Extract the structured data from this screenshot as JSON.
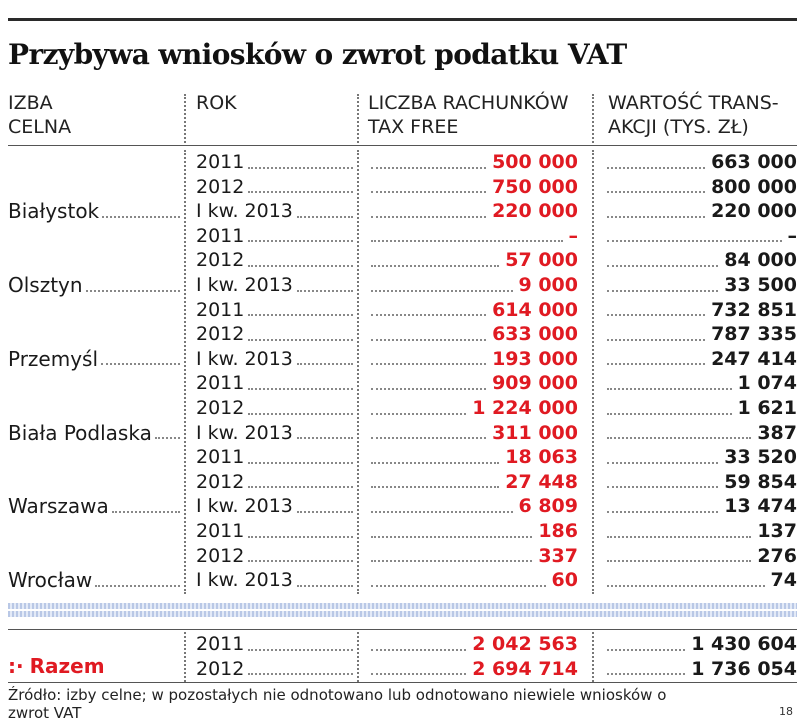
{
  "title": "Przybywa wniosków o zwrot podatku VAT",
  "headers": {
    "c1_l1": "IZBA",
    "c1_l2": "CELNA",
    "c2_l1": "ROK",
    "c3_l1": "LICZBA RACHUNKÓW",
    "c3_l2": "TAX FREE",
    "c4_l1": "WARTOŚĆ TRANS-",
    "c4_l2": "AKCJI (TYS. ZŁ)"
  },
  "rows": [
    {
      "year": "2011",
      "count": "500 000",
      "value": "663 000"
    },
    {
      "year": "2012",
      "count": "750 000",
      "value": "800 000"
    },
    {
      "city": "Białystok",
      "year": "I kw. 2013",
      "count": "220 000",
      "value": "220 000"
    },
    {
      "year": "2011",
      "count": "–",
      "value": "–"
    },
    {
      "year": "2012",
      "count": "57 000",
      "value": "84 000"
    },
    {
      "city": "Olsztyn",
      "year": "I kw. 2013",
      "count": "9 000",
      "value": "33 500"
    },
    {
      "year": "2011",
      "count": "614 000",
      "value": "732 851"
    },
    {
      "year": "2012",
      "count": "633 000",
      "value": "787 335"
    },
    {
      "city": "Przemyśl",
      "year": "I kw. 2013",
      "count": "193 000",
      "value": "247 414"
    },
    {
      "year": "2011",
      "count": "909 000",
      "value": "1 074"
    },
    {
      "year": "2012",
      "count": "1 224 000",
      "value": "1 621"
    },
    {
      "city": "Biała Podlaska",
      "year": "I kw. 2013",
      "count": "311 000",
      "value": "387"
    },
    {
      "year": "2011",
      "count": "18 063",
      "value": "33 520"
    },
    {
      "year": "2012",
      "count": "27 448",
      "value": "59 854"
    },
    {
      "city": "Warszawa",
      "year": "I kw. 2013",
      "count": "6 809",
      "value": "13 474"
    },
    {
      "year": "2011",
      "count": "186",
      "value": "137"
    },
    {
      "year": "2012",
      "count": "337",
      "value": "276"
    },
    {
      "city": "Wrocław",
      "year": "I kw. 2013",
      "count": "60",
      "value": "74"
    }
  ],
  "totals": {
    "label_marker": ":·",
    "label": "Razem",
    "rows": [
      {
        "year": "2011",
        "count": "2 042 563",
        "value": "1 430 604"
      },
      {
        "year": "2012",
        "count": "2 694 714",
        "value": "1 736 054"
      }
    ]
  },
  "source": "Źródło: izby celne; w pozostałych nie odnotowano lub odnotowano niewiele wniosków o zwrot VAT",
  "page_number": "18",
  "colors": {
    "accent_red": "#e01a22",
    "band_blue": "#b9c8e6"
  }
}
